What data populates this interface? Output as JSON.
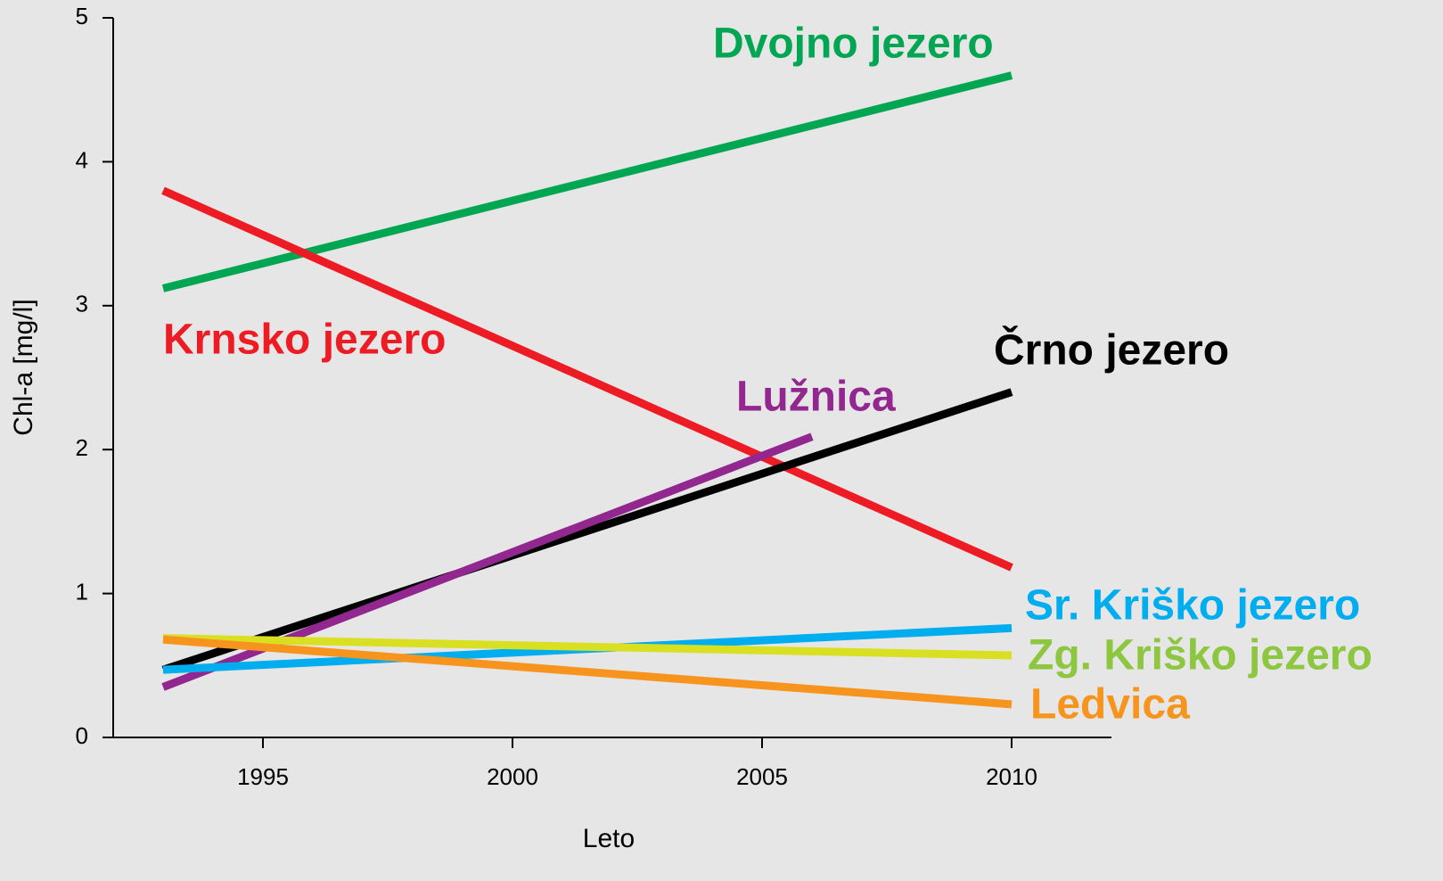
{
  "chart_data": {
    "type": "line",
    "x_label": "Leto",
    "y_label": "Chl-a [mg/l]",
    "xlim": [
      1992,
      2012
    ],
    "xticks": [
      1995,
      2000,
      2005,
      2010
    ],
    "ylim": [
      0,
      5
    ],
    "yticks": [
      0,
      1,
      2,
      3,
      4,
      5
    ],
    "series": [
      {
        "name": "Dvojno jezero",
        "color": "#00a651",
        "x": [
          1993,
          2010
        ],
        "values": [
          3.12,
          4.6
        ]
      },
      {
        "name": "Krnsko jezero",
        "color": "#ed1c24",
        "x": [
          1993,
          2010
        ],
        "values": [
          3.8,
          1.18
        ]
      },
      {
        "name": "Črno jezero",
        "color": "#000000",
        "x": [
          1993,
          2010
        ],
        "values": [
          0.47,
          2.4
        ]
      },
      {
        "name": "Lužnica",
        "color": "#92278f",
        "x": [
          1993,
          2006
        ],
        "values": [
          0.35,
          2.09
        ]
      },
      {
        "name": "Sr. Kriško jezero",
        "color": "#00aeef",
        "x": [
          1993,
          2010
        ],
        "values": [
          0.47,
          0.76
        ]
      },
      {
        "name": "Zg. Kriško jezero",
        "color": "#d9e021",
        "label_color": "#8dc63f",
        "x": [
          1993,
          2010
        ],
        "values": [
          0.69,
          0.57
        ]
      },
      {
        "name": "Ledvica",
        "color": "#f7941d",
        "x": [
          1993,
          2010
        ],
        "values": [
          0.68,
          0.23
        ]
      }
    ]
  }
}
